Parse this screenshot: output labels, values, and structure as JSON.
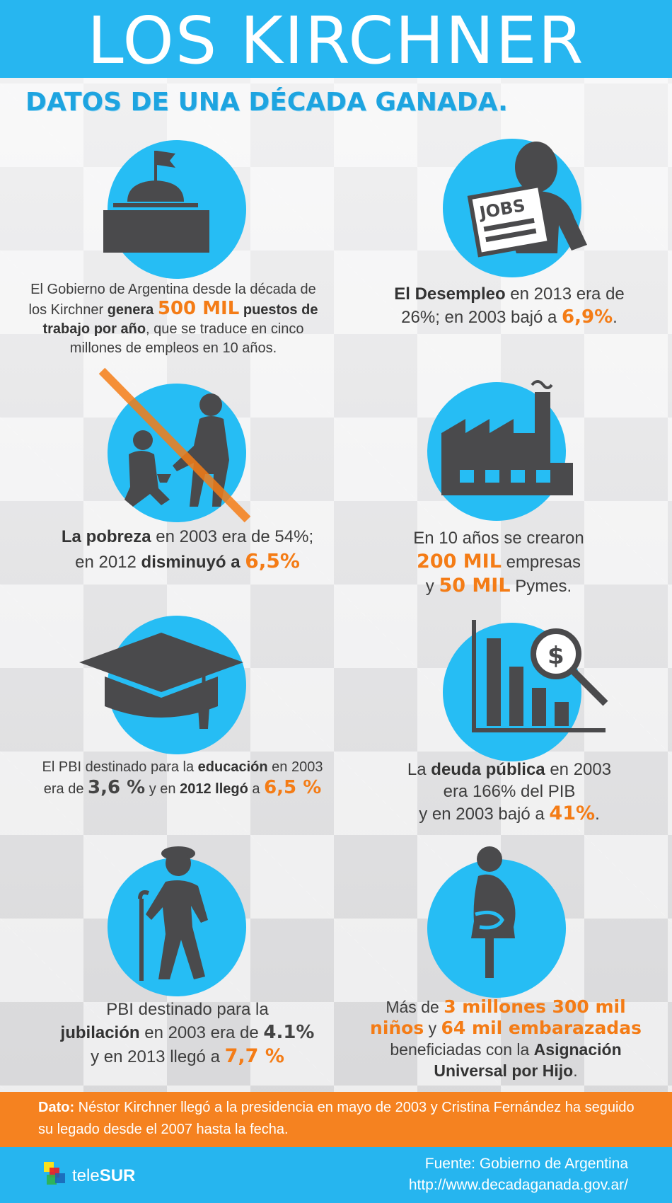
{
  "header": {
    "title": "LOS KIRCHNER",
    "subtitle": "DATOS DE UNA DÉCADA GANADA."
  },
  "icons": {
    "building": "government-building-icon",
    "jobs": "jobs-newspaper-icon",
    "jobs_label": "JOBS",
    "poverty": "child-labor-icon",
    "factory": "factory-icon",
    "education": "graduation-cap-icon",
    "debt": "debt-chart-icon",
    "debt_symbol": "$",
    "elderly": "elderly-person-icon",
    "pregnant": "pregnant-woman-icon"
  },
  "facts": {
    "empleo": {
      "line1_a": "El Gobierno de Argentina desde la década de",
      "line2_a": "los Kirchner ",
      "line2_b": "genera ",
      "line2_hl": "500 MIL",
      "line2_c": " puestos de",
      "line3_b": "trabajo por año",
      "line3_c": ", que se traduce en cinco",
      "line4": "millones de empleos en 10 años."
    },
    "desempleo": {
      "line1_b": "El Desempleo",
      "line1_c": " en 2013 era de",
      "line2_a": "26%; en 2003 bajó a ",
      "line2_hl": "6,9%",
      "line2_end": "."
    },
    "pobreza": {
      "line1_b": "La pobreza",
      "line1_c": " en 2003 era de 54%;",
      "line2_a": "en 2012 ",
      "line2_b": "disminuyó a ",
      "line2_hl": "6,5%"
    },
    "empresas": {
      "line1": "En 10 años se crearon",
      "line2_hl": "200 MIL",
      "line2_c": " empresas",
      "line3_a": "y ",
      "line3_hl": "50 MIL",
      "line3_c": " Pymes",
      "line3_end": "."
    },
    "educacion": {
      "line1_a": "El PBI destinado para la ",
      "line1_b": "educación",
      "line1_c": " en 2003",
      "line2_a": "era de ",
      "line2_hl": "3,6 %",
      "line2_c": " y en ",
      "line2_b": "2012 llegó",
      "line2_d": " a ",
      "line2_hl2": "6,5 %"
    },
    "deuda": {
      "line1_a": "La ",
      "line1_b": "deuda pública",
      "line1_c": " en 2003",
      "line2": "era 166% del PIB",
      "line3_a": "y en 2003 bajó a ",
      "line3_hl": "41%",
      "line3_end": "."
    },
    "jubilacion": {
      "line1": "PBI destinado para la",
      "line2_b": "jubilación",
      "line2_c": " en 2003 era de ",
      "line2_hl": "4.1%",
      "line3_a": "y en 2013 llegó a ",
      "line3_hl": "7,7 %"
    },
    "asignacion": {
      "line1_a": "Más de ",
      "line1_hl": "3 millones 300 mil",
      "line2_hl": "niños",
      "line2_a": " y ",
      "line2_hl2": "64 mil embarazadas",
      "line3_a": "beneficiadas con la ",
      "line3_b": "Asignación",
      "line4_b": "Universal por Hijo",
      "line4_end": "."
    }
  },
  "footer": {
    "dato_label": "Dato:",
    "dato_text": " Néstor Kirchner llegó a la presidencia en mayo de 2003 y Cristina Fernández ha seguido su legado desde el 2007 hasta la fecha.",
    "logo_tele": "tele",
    "logo_sur": "SUR",
    "fuente": "Fuente: Gobierno de Argentina",
    "url": "http://www.decadaganada.gov.ar/"
  },
  "colors": {
    "accent_blue": "#26bdf4",
    "highlight_orange": "#f47c16",
    "icon_gray": "#4a4a4c"
  }
}
